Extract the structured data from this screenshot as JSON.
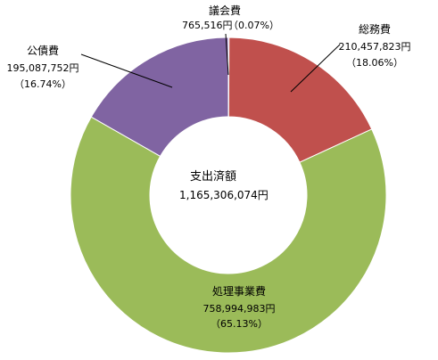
{
  "chart_data": {
    "type": "pie",
    "variant": "donut",
    "center_label": "支出済額",
    "center_value": "1,165,306,074円",
    "slices": [
      {
        "name": "議会費",
        "value": 765516,
        "value_label": "765,516円",
        "percent_label": "（0.07%）",
        "color": "#4f81bd"
      },
      {
        "name": "総務費",
        "value": 210457823,
        "value_label": "210,457,823円",
        "percent_label": "（18.06%）",
        "color": "#c0504d"
      },
      {
        "name": "処理事業費",
        "value": 758994983,
        "value_label": "758,994,983円",
        "percent_label": "（65.13%）",
        "color": "#9bbb59"
      },
      {
        "name": "公債費",
        "value": 195087752,
        "value_label": "195,087,752円",
        "percent_label": "（16.74%）",
        "color": "#8064a2"
      }
    ]
  }
}
